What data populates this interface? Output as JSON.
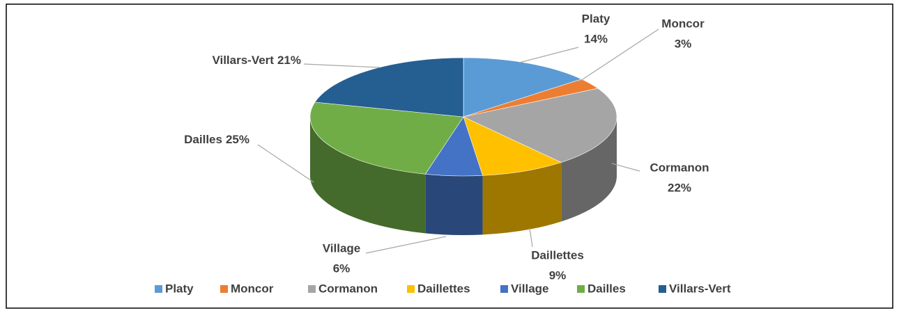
{
  "chart_data": {
    "type": "pie",
    "categories": [
      "Platy",
      "Moncor",
      "Cormanon",
      "Daillettes",
      "Village",
      "Dailles",
      "Villars-Vert"
    ],
    "values": [
      14,
      3,
      22,
      9,
      6,
      25,
      21
    ],
    "value_labels": [
      "14%",
      "3%",
      "22%",
      "9%",
      "6%",
      "25%",
      "21%"
    ],
    "colors": [
      "#5b9bd5",
      "#ed7d31",
      "#a5a5a5",
      "#ffc000",
      "#4472c4",
      "#70ad47",
      "#255e91"
    ],
    "legend": "bottom"
  }
}
